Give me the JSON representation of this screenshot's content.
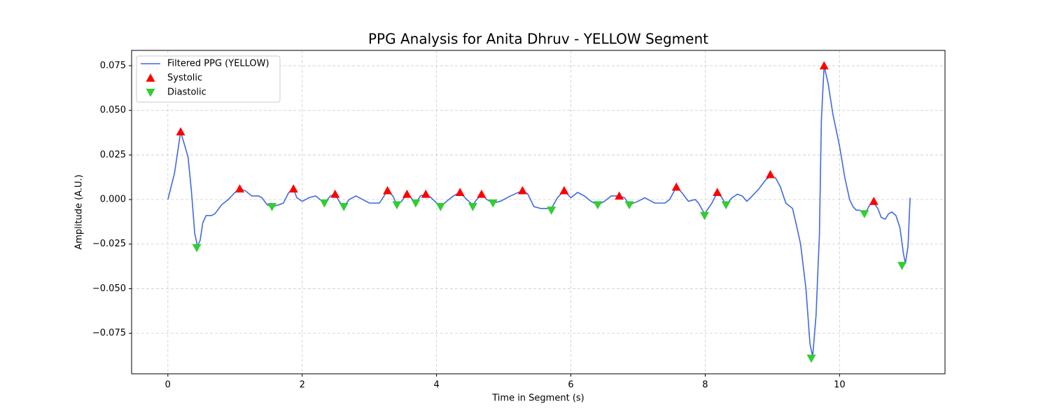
{
  "chart_data": {
    "type": "line",
    "title": "PPG Analysis for Anita Dhruv - YELLOW Segment",
    "x_label": "Time in Segment (s)",
    "y_label": "Amplitude (A.U.)",
    "xlim": [
      -0.54,
      11.57
    ],
    "ylim": [
      -0.0977,
      0.0836
    ],
    "xticks": [
      0,
      2,
      4,
      6,
      8,
      10
    ],
    "yticks": [
      {
        "value": -0.075,
        "label": "−0.075"
      },
      {
        "value": -0.05,
        "label": "−0.050"
      },
      {
        "value": -0.025,
        "label": "−0.025"
      },
      {
        "value": 0,
        "label": "0.000"
      },
      0.025,
      {
        "value": 0.05,
        "label": "0.050"
      },
      0.075
    ],
    "grid": true,
    "legend": "upper left",
    "series": [
      {
        "name": "Filtered PPG (YELLOW)",
        "color": "#4169e1",
        "marker": "none",
        "x": [
          0,
          0.1,
          0.19,
          0.3,
          0.35,
          0.4,
          0.44,
          0.48,
          0.52,
          0.57,
          0.65,
          0.7,
          0.8,
          0.9,
          1.0,
          1.07,
          1.15,
          1.25,
          1.35,
          1.4,
          1.48,
          1.55,
          1.65,
          1.72,
          1.8,
          1.87,
          1.92,
          2.0,
          2.1,
          2.2,
          2.33,
          2.42,
          2.49,
          2.55,
          2.62,
          2.7,
          2.8,
          2.9,
          3.0,
          3.15,
          3.27,
          3.35,
          3.41,
          3.48,
          3.56,
          3.62,
          3.69,
          3.76,
          3.84,
          3.92,
          4.06,
          4.15,
          4.25,
          4.35,
          4.45,
          4.54,
          4.6,
          4.67,
          4.75,
          4.84,
          4.95,
          5.1,
          5.28,
          5.36,
          5.45,
          5.55,
          5.65,
          5.71,
          5.8,
          5.9,
          6.0,
          6.1,
          6.15,
          6.2,
          6.3,
          6.4,
          6.5,
          6.6,
          6.72,
          6.8,
          6.87,
          7.0,
          7.1,
          7.25,
          7.4,
          7.47,
          7.57,
          7.65,
          7.75,
          7.85,
          7.9,
          7.99,
          8.1,
          8.18,
          8.25,
          8.31,
          8.4,
          8.48,
          8.55,
          8.62,
          8.7,
          8.8,
          8.9,
          8.97,
          9.05,
          9.12,
          9.2,
          9.3,
          9.35,
          9.42,
          9.5,
          9.56,
          9.6,
          9.65,
          9.7,
          9.73,
          9.77,
          9.83,
          9.9,
          10.0,
          10.08,
          10.15,
          10.2,
          10.25,
          10.3,
          10.38,
          10.45,
          10.51,
          10.57,
          10.62,
          10.68,
          10.73,
          10.78,
          10.84,
          10.9,
          10.95,
          10.98,
          11.02,
          11.05
        ],
        "values": [
          0,
          0.015,
          0.038,
          0.024,
          0.005,
          -0.019,
          -0.026,
          -0.023,
          -0.013,
          -0.009,
          -0.009,
          -0.008,
          -0.003,
          0,
          0.004,
          0.006,
          0.005,
          0.002,
          0.002,
          0.001,
          -0.003,
          -0.004,
          -0.003,
          -0.002,
          0.004,
          0.006,
          0.001,
          -0.001,
          0.001,
          0.002,
          -0.002,
          0.002,
          0.003,
          -0.001,
          -0.004,
          0,
          0.002,
          0,
          -0.002,
          -0.002,
          0.005,
          0.002,
          -0.003,
          -0.001,
          0.003,
          0.001,
          -0.002,
          0.002,
          0.003,
          0.001,
          -0.004,
          -0.001,
          0.002,
          0.004,
          0,
          -0.003,
          0,
          0.003,
          0,
          -0.002,
          -0.001,
          0.002,
          0.005,
          0.003,
          -0.004,
          -0.005,
          -0.005,
          -0.005,
          0.001,
          0.005,
          0.001,
          0.004,
          0.003,
          0.002,
          -0.001,
          -0.003,
          -0.001,
          0.002,
          0.002,
          0.001,
          -0.003,
          -0.001,
          0.001,
          -0.002,
          -0.002,
          0,
          0.007,
          0.004,
          -0.001,
          0,
          -0.002,
          -0.008,
          -0.002,
          0.004,
          0.001,
          -0.003,
          0.001,
          0.003,
          0.002,
          -0.001,
          0.002,
          0.006,
          0.011,
          0.013,
          0.012,
          0.007,
          -0.002,
          -0.005,
          -0.013,
          -0.025,
          -0.05,
          -0.081,
          -0.088,
          -0.065,
          -0.02,
          0.045,
          0.075,
          0.065,
          0.048,
          0.03,
          0.012,
          0,
          -0.004,
          -0.006,
          -0.006,
          -0.008,
          -0.003,
          -0.002,
          -0.005,
          -0.01,
          -0.011,
          -0.008,
          -0.007,
          -0.009,
          -0.016,
          -0.03,
          -0.036,
          -0.026,
          0.001
        ]
      },
      {
        "name": "Systolic",
        "color": "#ff0000",
        "marker": "triangle-up",
        "x": [
          0.19,
          1.07,
          1.87,
          2.49,
          3.27,
          3.56,
          3.84,
          4.35,
          4.67,
          5.28,
          5.9,
          6.72,
          7.57,
          8.18,
          8.97,
          9.77,
          10.51
        ],
        "values": [
          0.038,
          0.006,
          0.006,
          0.003,
          0.005,
          0.003,
          0.003,
          0.004,
          0.003,
          0.005,
          0.005,
          0.002,
          0.007,
          0.004,
          0.014,
          0.075,
          -0.001
        ]
      },
      {
        "name": "Diastolic",
        "color": "#32cd32",
        "marker": "triangle-down",
        "x": [
          0.43,
          1.55,
          2.33,
          2.62,
          3.41,
          3.69,
          4.06,
          4.54,
          4.84,
          5.71,
          6.4,
          6.87,
          7.99,
          8.31,
          9.58,
          10.37,
          10.93
        ],
        "values": [
          -0.027,
          -0.004,
          -0.002,
          -0.004,
          -0.003,
          -0.002,
          -0.004,
          -0.004,
          -0.002,
          -0.006,
          -0.003,
          -0.003,
          -0.009,
          -0.003,
          -0.089,
          -0.008,
          -0.037
        ]
      }
    ]
  }
}
